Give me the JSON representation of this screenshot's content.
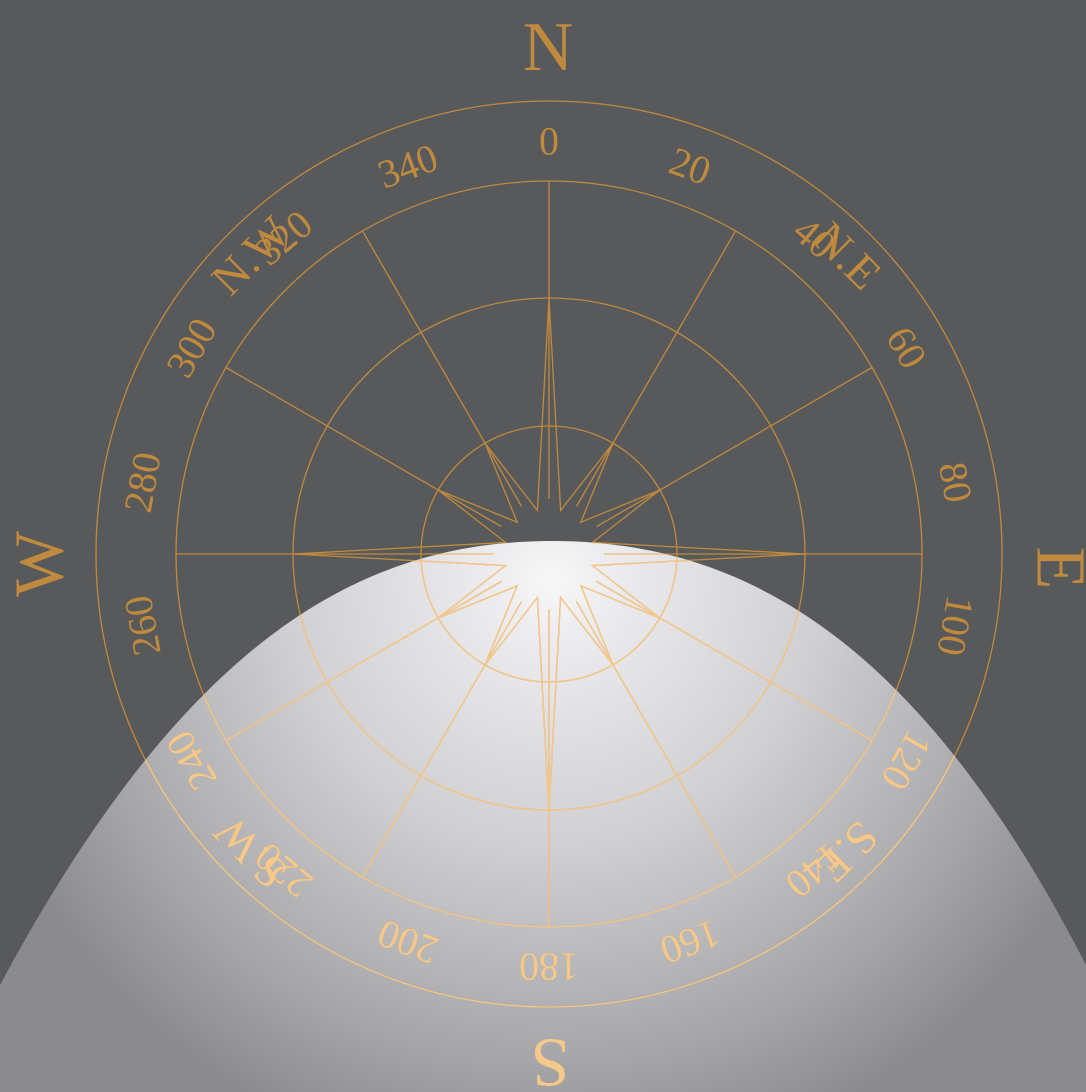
{
  "compass": {
    "cardinals": [
      "N",
      "E",
      "S",
      "W"
    ],
    "intercardinals": [
      "N.E",
      "S.E",
      "S.W",
      "N.W"
    ],
    "degree_labels": [
      "0",
      "20",
      "40",
      "60",
      "80",
      "100",
      "120",
      "140",
      "160",
      "180",
      "200",
      "220",
      "240",
      "260",
      "280",
      "300",
      "320",
      "340"
    ],
    "line_color": "#c08a3e",
    "lit_color": "#f6c98a",
    "background": "#58595b"
  }
}
